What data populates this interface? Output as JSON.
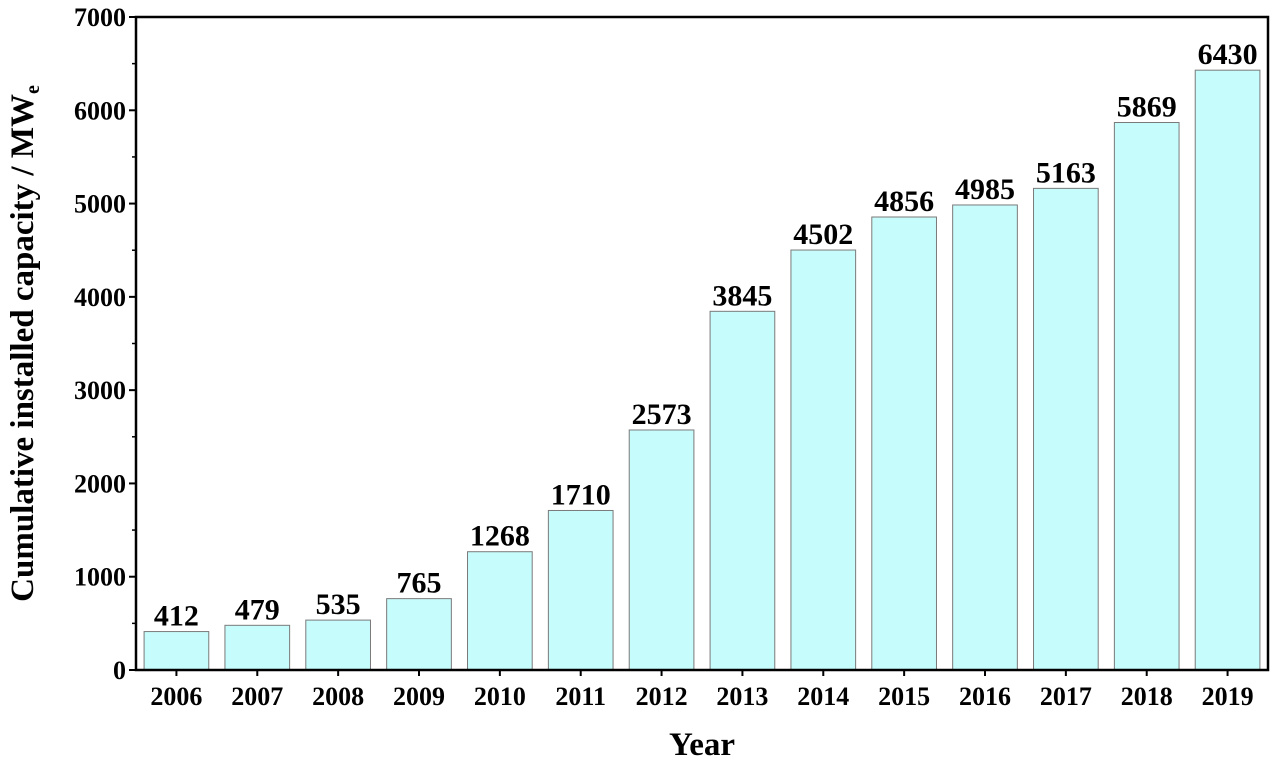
{
  "chart_data": {
    "type": "bar",
    "categories": [
      "2006",
      "2007",
      "2008",
      "2009",
      "2010",
      "2011",
      "2012",
      "2013",
      "2014",
      "2015",
      "2016",
      "2017",
      "2018",
      "2019"
    ],
    "values": [
      412,
      479,
      535,
      765,
      1268,
      1710,
      2573,
      3845,
      4502,
      4856,
      4985,
      5163,
      5869,
      6430
    ],
    "data_labels": [
      "412",
      "479",
      "535",
      "765",
      "1268",
      "1710",
      "2573",
      "3845",
      "4502",
      "4856",
      "4985",
      "5163",
      "5869",
      "6430"
    ],
    "title": "",
    "xlabel": "Year",
    "ylabel_main": "Cumulative installed capacity / MW",
    "ylabel_sub": "e",
    "ylim": [
      0,
      7000
    ],
    "yticks": [
      "0",
      "1000",
      "2000",
      "3000",
      "4000",
      "5000",
      "6000",
      "7000"
    ],
    "grid": false,
    "legend": "none",
    "bar_color": "#c7fcfc",
    "bar_edge_color": "#7a7a7a"
  }
}
